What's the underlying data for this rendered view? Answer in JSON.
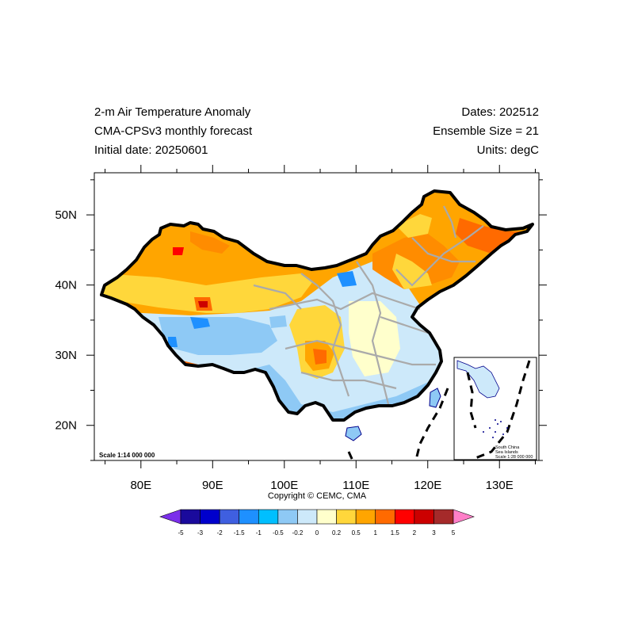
{
  "header": {
    "title_lines": [
      "2-m Air Temperature Anomaly",
      "CMA-CPSv3 monthly forecast",
      "Initial date: 20250601"
    ],
    "info_lines": [
      "Dates: 202512",
      "Ensemble Size = 21",
      "Units: degC"
    ]
  },
  "map": {
    "x_ticks": [
      "80E",
      "90E",
      "100E",
      "110E",
      "120E",
      "130E"
    ],
    "y_ticks": [
      "50N",
      "40N",
      "30N",
      "20N"
    ],
    "lon_range": [
      73.5,
      135.5
    ],
    "lat_range": [
      15,
      56
    ],
    "scale_label": "Scale 1:14 000 000",
    "inset_title": [
      "South China",
      "Sea Islands",
      "Scale 1:28 000 000"
    ]
  },
  "copyright": "Copyright © CEMC, CMA",
  "colorbar": {
    "labels": [
      "-5",
      "-3",
      "-2",
      "-1.5",
      "-1",
      "-0.5",
      "-0.2",
      "0",
      "0.2",
      "0.5",
      "1",
      "1.5",
      "2",
      "3",
      "5"
    ],
    "colors": [
      "#7B2FEB",
      "#1A0A9C",
      "#0000CC",
      "#3F5FE0",
      "#1E90FF",
      "#00BFFF",
      "#8EC9F5",
      "#CDE9FA",
      "#FFFFCC",
      "#FFD73B",
      "#FFA500",
      "#FF6A00",
      "#FF0000",
      "#CC0000",
      "#A52A2A",
      "#FF7FC8"
    ]
  }
}
